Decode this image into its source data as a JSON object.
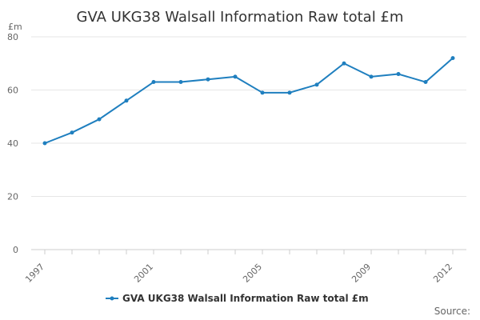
{
  "chart_data": {
    "type": "line",
    "title": "GVA UKG38 Walsall Information Raw total £m",
    "ylabel": "£m",
    "xlabel": "",
    "ylim": [
      0,
      80
    ],
    "y_ticks": [
      0,
      20,
      40,
      60,
      80
    ],
    "x_ticks": [
      1997,
      2001,
      2005,
      2009,
      2012
    ],
    "grid": true,
    "legend_position": "bottom",
    "series": [
      {
        "name": "GVA UKG38 Walsall Information Raw total £m",
        "color": "#1f7fbf",
        "x": [
          1997,
          1998,
          1999,
          2000,
          2001,
          2002,
          2003,
          2004,
          2005,
          2006,
          2007,
          2008,
          2009,
          2010,
          2011,
          2012
        ],
        "values": [
          40,
          44,
          49,
          56,
          63,
          63,
          64,
          65,
          59,
          59,
          62,
          70,
          65,
          66,
          63,
          72
        ]
      }
    ]
  },
  "source_label": "Source:"
}
